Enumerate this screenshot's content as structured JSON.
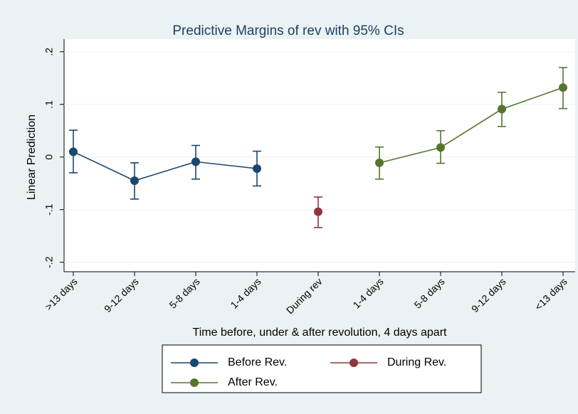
{
  "chart_data": {
    "type": "line",
    "title": "Predictive Margins of rev with 95% CIs",
    "x_label": "Time before, under & after revolution, 4 days apart",
    "y_label": "Linear Prediction",
    "categories": [
      ">13 days",
      "9-12 days",
      "5-8 days",
      "1-4 days",
      "During rev",
      "1-4 days",
      "5-8 days",
      "9-12 days",
      "<13 days"
    ],
    "series": [
      {
        "name": "Before Rev.",
        "color": "#1a476f",
        "values": [
          0.01,
          -0.045,
          -0.009,
          -0.022,
          null,
          null,
          null,
          null,
          null
        ],
        "lower": [
          -0.03,
          -0.08,
          -0.042,
          -0.055,
          null,
          null,
          null,
          null,
          null
        ],
        "upper": [
          0.051,
          -0.011,
          0.022,
          0.011,
          null,
          null,
          null,
          null,
          null
        ]
      },
      {
        "name": "During Rev.",
        "color": "#90353b",
        "values": [
          null,
          null,
          null,
          null,
          -0.104,
          null,
          null,
          null,
          null
        ],
        "lower": [
          null,
          null,
          null,
          null,
          -0.134,
          null,
          null,
          null,
          null
        ],
        "upper": [
          null,
          null,
          null,
          null,
          -0.076,
          null,
          null,
          null,
          null
        ]
      },
      {
        "name": "After Rev.",
        "color": "#55752f",
        "values": [
          null,
          null,
          null,
          null,
          null,
          -0.011,
          0.018,
          0.091,
          0.132
        ],
        "lower": [
          null,
          null,
          null,
          null,
          null,
          -0.042,
          -0.012,
          0.058,
          0.092
        ],
        "upper": [
          null,
          null,
          null,
          null,
          null,
          0.019,
          0.05,
          0.123,
          0.17
        ]
      }
    ],
    "ylim": [
      -0.218,
      0.224
    ],
    "yticks": [
      {
        "value": -0.2,
        "label": "-.2"
      },
      {
        "value": -0.1,
        "label": "-.1"
      },
      0,
      {
        "value": 0.1,
        "label": ".1"
      },
      {
        "value": 0.2,
        "label": ".2"
      }
    ],
    "grid": true,
    "legend": "bottom"
  }
}
